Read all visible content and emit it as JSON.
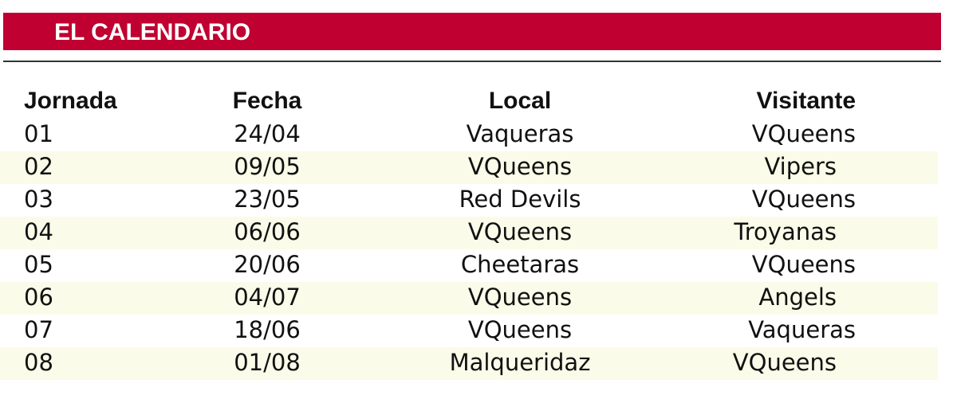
{
  "title": "EL CALENDARIO",
  "colors": {
    "banner": "#bf0030",
    "shade": "#fbfbe9"
  },
  "headers": [
    "Jornada",
    "Fecha",
    "Local",
    "Visitante"
  ],
  "rows": [
    [
      "01",
      "24/04",
      "Vaqueras",
      "VQueens"
    ],
    [
      "02",
      "09/05",
      "VQueens",
      "Vipers"
    ],
    [
      "03",
      "23/05",
      "Red Devils",
      "VQueens"
    ],
    [
      "04",
      "06/06",
      "VQueens",
      "Troyanas"
    ],
    [
      "05",
      "20/06",
      "Cheetaras",
      "VQueens"
    ],
    [
      "06",
      "04/07",
      "VQueens",
      "Angels"
    ],
    [
      "07",
      "18/06",
      "VQueens",
      "Vaqueras"
    ],
    [
      "08",
      "01/08",
      "Malqueridaz",
      "VQueens"
    ]
  ]
}
